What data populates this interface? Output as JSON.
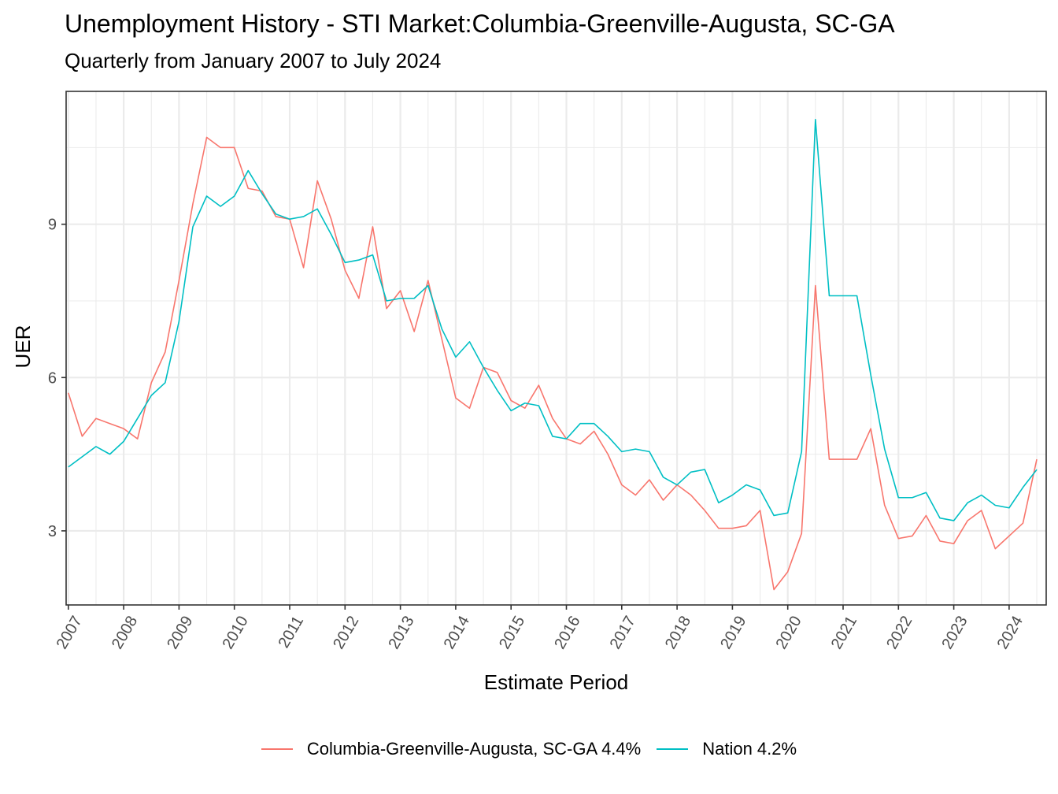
{
  "title": "Unemployment History - STI Market:Columbia-Greenville-Augusta, SC-GA",
  "subtitle": "Quarterly from January 2007 to July 2024",
  "colors": {
    "region": "#F8766D",
    "nation": "#00BFC4",
    "grid": "#EBEBEB",
    "panel_border": "#333333"
  },
  "chart_data": {
    "type": "line",
    "title": "Unemployment History - STI Market:Columbia-Greenville-Augusta, SC-GA",
    "subtitle": "Quarterly from January 2007 to July 2024",
    "xlabel": "Estimate Period",
    "ylabel": "UER",
    "xlim": [
      2006.96,
      2024.67
    ],
    "ylim": [
      1.55,
      11.6
    ],
    "x_ticks": [
      "2007",
      "2008",
      "2009",
      "2010",
      "2011",
      "2012",
      "2013",
      "2014",
      "2015",
      "2016",
      "2017",
      "2018",
      "2019",
      "2020",
      "2021",
      "2022",
      "2023",
      "2024"
    ],
    "y_ticks": [
      3,
      6,
      9
    ],
    "grid": true,
    "legend_position": "bottom",
    "x_start_year": 2007,
    "x_step": 0.25,
    "series": [
      {
        "name": "Columbia-Greenville-Augusta, SC-GA 4.4%",
        "color": "#F8766D",
        "values": [
          5.7,
          4.85,
          5.2,
          5.1,
          5.0,
          4.8,
          5.9,
          6.5,
          7.9,
          9.4,
          10.7,
          10.5,
          10.5,
          9.7,
          9.65,
          9.15,
          9.1,
          8.15,
          9.85,
          9.1,
          8.1,
          7.55,
          8.95,
          7.35,
          7.7,
          6.9,
          7.9,
          6.75,
          5.6,
          5.4,
          6.2,
          6.1,
          5.55,
          5.4,
          5.85,
          5.2,
          4.8,
          4.7,
          4.95,
          4.5,
          3.9,
          3.7,
          4.0,
          3.6,
          3.9,
          3.7,
          3.4,
          3.05,
          3.05,
          3.1,
          3.4,
          1.85,
          2.2,
          2.95,
          7.8,
          4.4,
          4.4,
          4.4,
          5.0,
          3.5,
          2.85,
          2.9,
          3.3,
          2.8,
          2.75,
          3.2,
          3.4,
          2.65,
          2.9,
          3.15,
          4.4
        ]
      },
      {
        "name": "Nation 4.2%",
        "color": "#00BFC4",
        "values": [
          4.25,
          4.45,
          4.65,
          4.5,
          4.75,
          5.2,
          5.65,
          5.9,
          7.1,
          8.95,
          9.55,
          9.35,
          9.55,
          10.05,
          9.6,
          9.2,
          9.1,
          9.15,
          9.3,
          8.8,
          8.25,
          8.3,
          8.4,
          7.5,
          7.55,
          7.55,
          7.8,
          6.95,
          6.4,
          6.7,
          6.2,
          5.75,
          5.35,
          5.5,
          5.45,
          4.85,
          4.8,
          5.1,
          5.1,
          4.85,
          4.55,
          4.6,
          4.55,
          4.05,
          3.9,
          4.15,
          4.2,
          3.55,
          3.7,
          3.9,
          3.8,
          3.3,
          3.35,
          4.55,
          11.05,
          7.6,
          7.6,
          7.6,
          6.05,
          4.6,
          3.65,
          3.65,
          3.75,
          3.25,
          3.2,
          3.55,
          3.7,
          3.5,
          3.45,
          3.85,
          4.2
        ]
      }
    ]
  }
}
